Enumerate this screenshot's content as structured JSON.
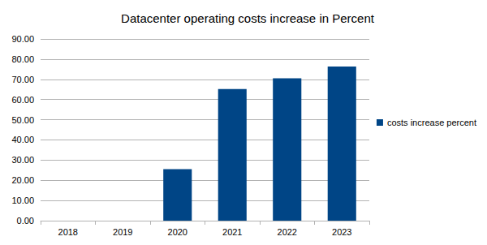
{
  "chart_data": {
    "type": "bar",
    "title": "Datacenter operating costs increase in Percent",
    "categories": [
      "2018",
      "2019",
      "2020",
      "2021",
      "2022",
      "2023"
    ],
    "series": [
      {
        "name": "costs increase percent",
        "color": "#004586",
        "values": [
          0,
          0,
          25.5,
          65.2,
          70.5,
          76.3
        ]
      }
    ],
    "ylim": [
      0,
      90
    ],
    "yticks": [
      {
        "value": 0,
        "label": "0.00"
      },
      {
        "value": 10,
        "label": "10.00"
      },
      {
        "value": 20,
        "label": "20.00"
      },
      {
        "value": 30,
        "label": "30.00"
      },
      {
        "value": 40,
        "label": "40.00"
      },
      {
        "value": 50,
        "label": "50.00"
      },
      {
        "value": 60,
        "label": "60.00"
      },
      {
        "value": 70,
        "label": "70.00"
      },
      {
        "value": 80,
        "label": "80.00"
      },
      {
        "value": 90,
        "label": "90.00"
      }
    ],
    "grid": true,
    "legend": "right"
  }
}
